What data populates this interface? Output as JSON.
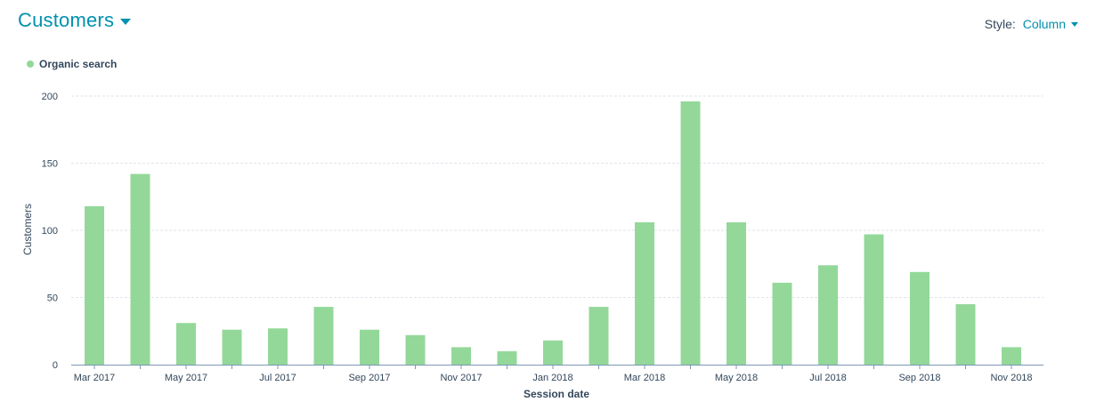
{
  "header": {
    "title": "Customers",
    "style_label": "Style:",
    "style_value": "Column"
  },
  "colors": {
    "accent": "#0091ae",
    "bar": "#93d899",
    "grid": "#dfe3eb",
    "axis": "#7c98b6"
  },
  "chart_data": {
    "type": "bar",
    "ylabel": "Customers",
    "xlabel": "Session date",
    "ylim": [
      0,
      200
    ],
    "yticks": [
      0,
      50,
      100,
      150,
      200
    ],
    "grid": true,
    "legend_position": "top-left",
    "categories": [
      "Mar 2017",
      "Apr 2017",
      "May 2017",
      "Jun 2017",
      "Jul 2017",
      "Aug 2017",
      "Sep 2017",
      "Oct 2017",
      "Nov 2017",
      "Dec 2017",
      "Jan 2018",
      "Feb 2018",
      "Mar 2018",
      "Apr 2018",
      "May 2018",
      "Jun 2018",
      "Jul 2018",
      "Aug 2018",
      "Sep 2018",
      "Oct 2018",
      "Nov 2018"
    ],
    "tick_labels": [
      "Mar 2017",
      "",
      "May 2017",
      "",
      "Jul 2017",
      "",
      "Sep 2017",
      "",
      "Nov 2017",
      "",
      "Jan 2018",
      "",
      "Mar 2018",
      "",
      "May 2018",
      "",
      "Jul 2018",
      "",
      "Sep 2018",
      "",
      "Nov 2018"
    ],
    "series": [
      {
        "name": "Organic search",
        "color": "#93d899",
        "values": [
          118,
          142,
          31,
          26,
          27,
          43,
          26,
          22,
          13,
          10,
          18,
          43,
          106,
          196,
          106,
          61,
          74,
          97,
          69,
          45,
          13
        ]
      }
    ]
  }
}
